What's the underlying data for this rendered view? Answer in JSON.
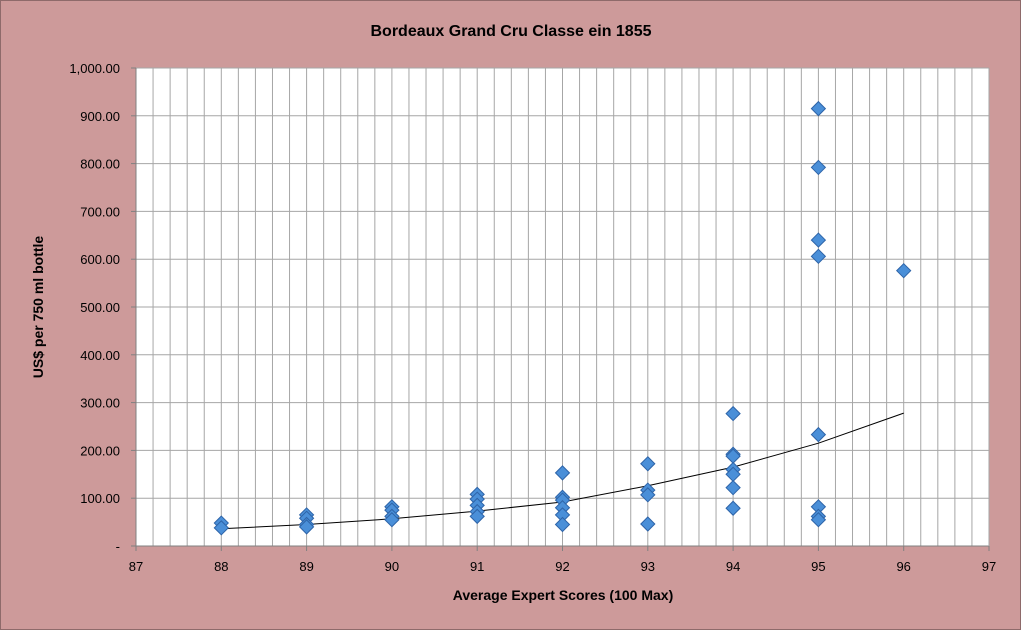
{
  "chart_data": {
    "type": "scatter",
    "title": "Bordeaux Grand Cru Classe ein 1855",
    "xlabel": "Average Expert Scores (100 Max)",
    "ylabel": "US$ per 750 ml bottle",
    "xlim": [
      87,
      97
    ],
    "ylim": [
      0,
      1000
    ],
    "x_ticks": [
      "87",
      "88",
      "89",
      "90",
      "91",
      "92",
      "93",
      "94",
      "95",
      "96",
      "97"
    ],
    "y_ticks": [
      "-",
      "100.00",
      "200.00",
      "300.00",
      "400.00",
      "500.00",
      "600.00",
      "700.00",
      "800.00",
      "900.00",
      "1,000.00"
    ],
    "y_tick_values": [
      0,
      100,
      200,
      300,
      400,
      500,
      600,
      700,
      800,
      900,
      1000
    ],
    "grid": true,
    "minor_x_grid_step": 0.2,
    "legend": "none",
    "series": [
      {
        "marker": "diamond",
        "color": "#4a8fd8",
        "points": [
          [
            88,
            48
          ],
          [
            88,
            38
          ],
          [
            89,
            65
          ],
          [
            89,
            58
          ],
          [
            89,
            45
          ],
          [
            89,
            40
          ],
          [
            90,
            82
          ],
          [
            90,
            75
          ],
          [
            90,
            62
          ],
          [
            90,
            55
          ],
          [
            91,
            108
          ],
          [
            91,
            98
          ],
          [
            91,
            85
          ],
          [
            91,
            72
          ],
          [
            91,
            62
          ],
          [
            92,
            153
          ],
          [
            92,
            102
          ],
          [
            92,
            96
          ],
          [
            92,
            80
          ],
          [
            92,
            65
          ],
          [
            92,
            45
          ],
          [
            93,
            172
          ],
          [
            93,
            117
          ],
          [
            93,
            107
          ],
          [
            93,
            46
          ],
          [
            94,
            277
          ],
          [
            94,
            192
          ],
          [
            94,
            188
          ],
          [
            94,
            160
          ],
          [
            94,
            150
          ],
          [
            94,
            122
          ],
          [
            94,
            79
          ],
          [
            95,
            915
          ],
          [
            95,
            792
          ],
          [
            95,
            640
          ],
          [
            95,
            606
          ],
          [
            95,
            233
          ],
          [
            95,
            82
          ],
          [
            95,
            62
          ],
          [
            95,
            55
          ],
          [
            96,
            576
          ]
        ]
      }
    ],
    "trendline": {
      "type": "exponential",
      "color": "#000000",
      "points": [
        [
          88,
          36
        ],
        [
          89,
          45
        ],
        [
          90,
          57
        ],
        [
          91,
          73
        ],
        [
          92,
          92
        ],
        [
          93,
          126
        ],
        [
          94,
          165
        ],
        [
          95,
          215
        ],
        [
          96,
          278
        ]
      ]
    }
  }
}
